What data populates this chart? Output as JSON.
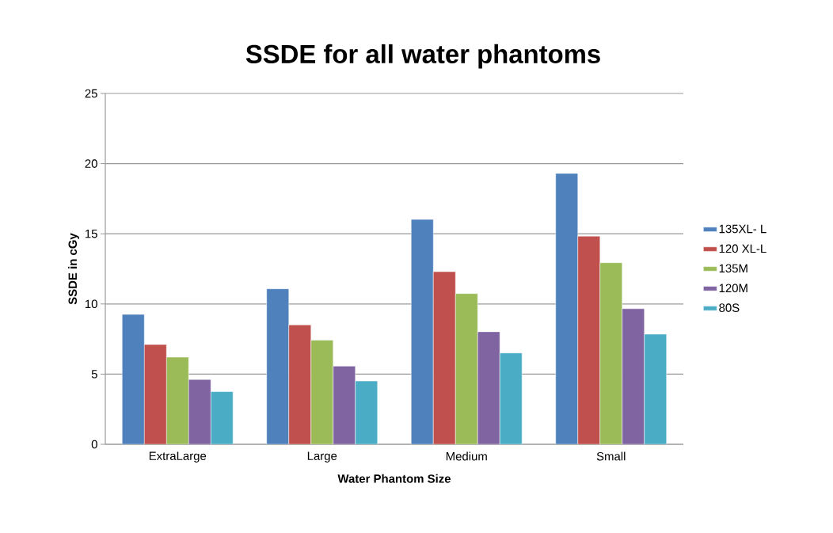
{
  "chart_data": {
    "type": "bar",
    "title": "SSDE for all water phantoms",
    "xlabel": "Water Phantom Size",
    "ylabel": "SSDE in cGy",
    "categories": [
      "ExtraLarge",
      "Large",
      "Medium",
      "Small"
    ],
    "series": [
      {
        "name": "135XL- L",
        "color": "#4f81bd",
        "values": [
          9.26,
          11.08,
          16.02,
          19.3
        ]
      },
      {
        "name": "120 XL-L",
        "color": "#c0504d",
        "values": [
          7.11,
          8.51,
          12.3,
          14.83
        ]
      },
      {
        "name": "135M",
        "color": "#9bbb59",
        "values": [
          6.21,
          7.42,
          10.74,
          12.94
        ]
      },
      {
        "name": "120M",
        "color": "#8064a2",
        "values": [
          4.62,
          5.57,
          8.02,
          9.66
        ]
      },
      {
        "name": "80S",
        "color": "#4bacc6",
        "values": [
          3.75,
          4.51,
          6.51,
          7.85
        ]
      }
    ],
    "ylim": [
      0,
      25
    ],
    "yticks": [
      0,
      5,
      10,
      15,
      20,
      25
    ],
    "grid": "y",
    "legend": "right"
  }
}
